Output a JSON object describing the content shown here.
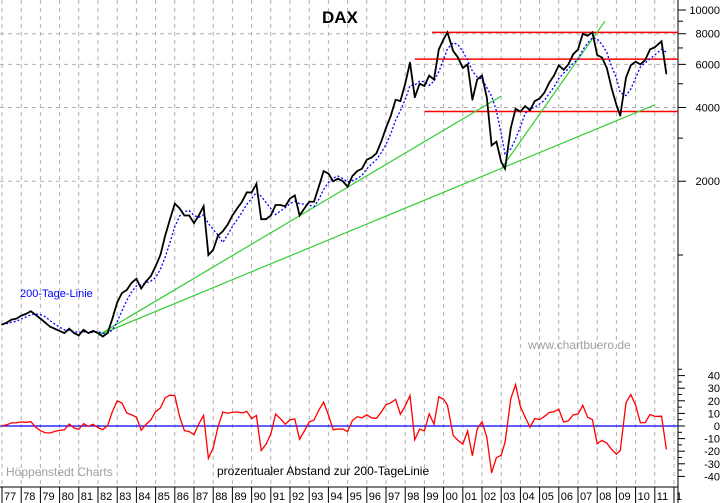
{
  "chart_data": [
    {
      "type": "line",
      "title": "DAX",
      "yscale": "log",
      "ylim": [
        400,
        10000
      ],
      "y_ticks": [
        2000,
        4000,
        6000,
        8000,
        10000
      ],
      "y_minor_ticks": [
        1000,
        3000,
        5000,
        7000,
        9000
      ],
      "grid": true,
      "x_tick_labels": [
        "77",
        "78",
        "79",
        "80",
        "81",
        "82",
        "83",
        "84",
        "85",
        "86",
        "87",
        "88",
        "89",
        "90",
        "91",
        "92",
        "93",
        "94",
        "95",
        "96",
        "97",
        "98",
        "99",
        "00",
        "01",
        "02",
        "03",
        "04",
        "05",
        "06",
        "07",
        "08",
        "09",
        "10",
        "11",
        "1"
      ],
      "x_start_year": 1977,
      "series": [
        {
          "name": "DAX",
          "color": "#000000",
          "x": [
            1977.0,
            1977.25,
            1977.5,
            1977.75,
            1978.0,
            1978.25,
            1978.5,
            1978.75,
            1979.0,
            1979.25,
            1979.5,
            1979.75,
            1980.0,
            1980.25,
            1980.5,
            1980.75,
            1981.0,
            1981.25,
            1981.5,
            1981.75,
            1982.0,
            1982.25,
            1982.5,
            1982.75,
            1983.0,
            1983.25,
            1983.5,
            1983.75,
            1984.0,
            1984.25,
            1984.5,
            1984.75,
            1985.0,
            1985.25,
            1985.5,
            1985.75,
            1986.0,
            1986.25,
            1986.5,
            1986.75,
            1987.0,
            1987.25,
            1987.5,
            1987.75,
            1988.0,
            1988.25,
            1988.5,
            1988.75,
            1989.0,
            1989.25,
            1989.5,
            1989.75,
            1990.0,
            1990.25,
            1990.5,
            1990.75,
            1991.0,
            1991.25,
            1991.5,
            1991.75,
            1992.0,
            1992.25,
            1992.5,
            1992.75,
            1993.0,
            1993.25,
            1993.5,
            1993.75,
            1994.0,
            1994.25,
            1994.5,
            1994.75,
            1995.0,
            1995.25,
            1995.5,
            1995.75,
            1996.0,
            1996.25,
            1996.5,
            1996.75,
            1997.0,
            1997.25,
            1997.5,
            1997.75,
            1998.0,
            1998.25,
            1998.5,
            1998.75,
            1999.0,
            1999.25,
            1999.5,
            1999.75,
            2000.0,
            2000.2,
            2000.5,
            2000.75,
            2001.0,
            2001.25,
            2001.5,
            2001.75,
            2002.0,
            2002.25,
            2002.5,
            2002.75,
            2003.0,
            2003.2,
            2003.5,
            2003.75,
            2004.0,
            2004.25,
            2004.5,
            2004.75,
            2005.0,
            2005.25,
            2005.5,
            2005.75,
            2006.0,
            2006.25,
            2006.5,
            2006.75,
            2007.0,
            2007.25,
            2007.5,
            2007.75,
            2008.0,
            2008.25,
            2008.5,
            2008.75,
            2009.0,
            2009.2,
            2009.5,
            2009.75,
            2010.0,
            2010.25,
            2010.5,
            2010.75,
            2011.0,
            2011.35,
            2011.6
          ],
          "y": [
            520,
            530,
            545,
            550,
            565,
            575,
            590,
            570,
            550,
            530,
            510,
            500,
            490,
            480,
            500,
            480,
            470,
            495,
            480,
            490,
            480,
            465,
            480,
            550,
            640,
            700,
            720,
            770,
            800,
            730,
            780,
            820,
            900,
            1000,
            1200,
            1400,
            1620,
            1550,
            1450,
            1450,
            1350,
            1450,
            1580,
            1000,
            1050,
            1200,
            1250,
            1330,
            1450,
            1550,
            1650,
            1800,
            1800,
            1950,
            1400,
            1400,
            1450,
            1600,
            1600,
            1580,
            1700,
            1750,
            1450,
            1550,
            1650,
            1650,
            1900,
            2200,
            2150,
            2000,
            2050,
            2000,
            1900,
            2100,
            2200,
            2250,
            2450,
            2500,
            2600,
            2900,
            3300,
            3700,
            4300,
            4250,
            5000,
            6100,
            4400,
            5000,
            4900,
            5400,
            5200,
            6900,
            7600,
            8100,
            6800,
            6400,
            5800,
            6000,
            4300,
            5200,
            5400,
            4400,
            2800,
            2900,
            2400,
            2250,
            3300,
            3950,
            3850,
            4050,
            3900,
            4250,
            4350,
            4600,
            5050,
            5400,
            5950,
            5700,
            6000,
            6600,
            6900,
            8000,
            7850,
            8100,
            6550,
            6400,
            5800,
            4800,
            4100,
            3700,
            5300,
            5950,
            6150,
            6000,
            6250,
            6900,
            7050,
            7450,
            5500
          ]
        },
        {
          "name": "200-Tage-Linie",
          "color": "#0000ff",
          "derived_from": "DAX",
          "style": "dotted"
        }
      ],
      "annotations": {
        "watermark": "www.chartbuero.de",
        "publisher": "Höppenstedt Charts",
        "horizontal_lines": [
          {
            "value": 8100,
            "from_year": 1999.4,
            "color": "#ff0000"
          },
          {
            "value": 6300,
            "from_year": 1998.5,
            "color": "#ff0000"
          },
          {
            "value": 3850,
            "from_year": 1999.0,
            "color": "#ff0000"
          }
        ],
        "trend_lines": [
          {
            "from": [
              1982.0,
              470
            ],
            "to": [
              2003.0,
              4450
            ],
            "color": "#33cc33"
          },
          {
            "from": [
              1982.0,
              470
            ],
            "to": [
              2011.0,
              4100
            ],
            "color": "#33cc33"
          },
          {
            "from": [
              2003.0,
              2250
            ],
            "to": [
              2008.4,
              9000
            ],
            "color": "#33cc33"
          }
        ]
      }
    },
    {
      "type": "line",
      "title": "prozentualer Abstand zur 200-TageLinie",
      "ylim": [
        -45,
        45
      ],
      "y_ticks": [
        40,
        30,
        20,
        10,
        0,
        -10,
        -20,
        -30,
        -40
      ],
      "zero_line_color": "#0000ff",
      "series": [
        {
          "color": "#ff0000",
          "derived_from": "DAX"
        }
      ]
    }
  ]
}
